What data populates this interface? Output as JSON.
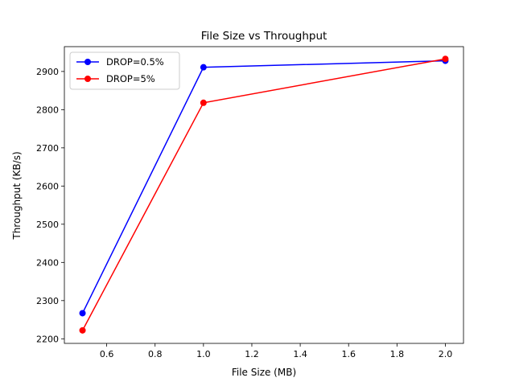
{
  "chart_data": {
    "type": "line",
    "title": "File Size vs Throughput",
    "xlabel": "File Size (MB)",
    "ylabel": "Throughput (KB/s)",
    "xlim": [
      0.425,
      2.075
    ],
    "ylim": [
      2188,
      2965
    ],
    "xticks": [
      0.6,
      0.8,
      1.0,
      1.2,
      1.4,
      1.6,
      1.8,
      2.0
    ],
    "xtick_labels": [
      "0.6",
      "0.8",
      "1.0",
      "1.2",
      "1.4",
      "1.6",
      "1.8",
      "2.0"
    ],
    "yticks": [
      2200,
      2300,
      2400,
      2500,
      2600,
      2700,
      2800,
      2900
    ],
    "ytick_labels": [
      "2200",
      "2300",
      "2400",
      "2500",
      "2600",
      "2700",
      "2800",
      "2900"
    ],
    "grid": false,
    "legend_position": "top-left",
    "series": [
      {
        "name": "DROP=0.5%",
        "color": "#0000ff",
        "x": [
          0.5,
          1.0,
          2.0
        ],
        "y": [
          2267,
          2911,
          2928
        ]
      },
      {
        "name": "DROP=5%",
        "color": "#ff0000",
        "x": [
          0.5,
          1.0,
          2.0
        ],
        "y": [
          2222,
          2818,
          2933
        ]
      }
    ]
  }
}
